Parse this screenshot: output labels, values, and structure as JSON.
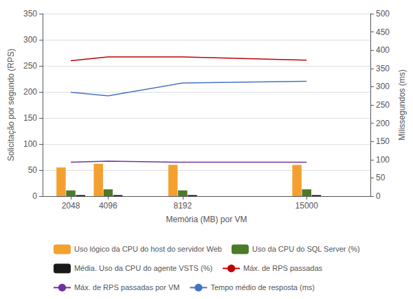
{
  "chart_data": {
    "type": "bar",
    "x": [
      2048,
      4096,
      8192,
      15000
    ],
    "xlabel": "Memória (MB) por VM",
    "ylabel": "Solicitação por segundo (RPS)",
    "y2label": "Milissegundos (ms)",
    "xlim": [
      500,
      18500
    ],
    "xticks": [
      2048,
      4096,
      8192,
      15000
    ],
    "ylim": [
      0,
      350
    ],
    "yticks": [
      0,
      50,
      100,
      150,
      200,
      250,
      300,
      350
    ],
    "y2lim": [
      0,
      500
    ],
    "y2ticks": [
      0,
      50,
      100,
      150,
      200,
      250,
      300,
      350,
      400,
      450,
      500
    ],
    "grid": true,
    "legend": "bottom",
    "series": [
      {
        "name": "Uso lógico da CPU do host do servidor Web",
        "type": "bar",
        "color": "#F4A030",
        "values": [
          55,
          62,
          60,
          60
        ]
      },
      {
        "name": "Uso da CPU do SQL Server (%)",
        "type": "bar",
        "color": "#4A7A2A",
        "values": [
          11,
          13,
          11,
          13
        ]
      },
      {
        "name": "Média. Uso da CPU do agente VSTS (%)",
        "type": "bar",
        "color": "#1A1A1A",
        "values": [
          2,
          2,
          2,
          2
        ]
      },
      {
        "name": "Máx. de RPS passadas",
        "type": "line",
        "color": "#C00000",
        "values": [
          260,
          267,
          267,
          261
        ]
      },
      {
        "name": "Máx. de RPS passadas por VM",
        "type": "line",
        "color": "#7030A0",
        "values": [
          65,
          67,
          65,
          65
        ]
      },
      {
        "name": "Tempo médio de resposta (ms)",
        "type": "line",
        "color": "#4472C4",
        "axis": "y2",
        "values": [
          285,
          275,
          310,
          315
        ]
      }
    ]
  }
}
